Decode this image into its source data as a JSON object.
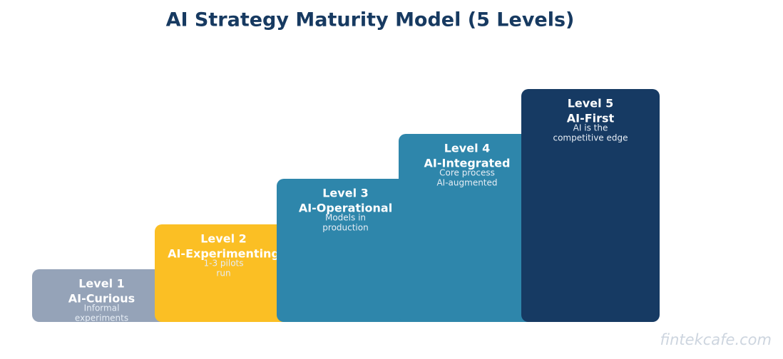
{
  "title": "AI Strategy Maturity Model (5 Levels)",
  "nodes": [
    {
      "level": "Level 1",
      "name": "AI-Curious",
      "description": [
        "Informal",
        "experiments"
      ]
    },
    {
      "level": "Level 2",
      "name": "AI-Experimenting",
      "description": [
        "1-3 pilots",
        "run"
      ]
    },
    {
      "level": "Level 3",
      "name": "AI-Operational",
      "description": [
        "Models in",
        "production"
      ]
    },
    {
      "level": "Level 4",
      "name": "AI-Integrated",
      "description": [
        "Core process",
        "AI-augmented"
      ]
    },
    {
      "level": "Level 5",
      "name": "AI-First",
      "description": [
        "AI is the",
        "competitive edge"
      ]
    }
  ],
  "watermark": "fintekcafe.com"
}
